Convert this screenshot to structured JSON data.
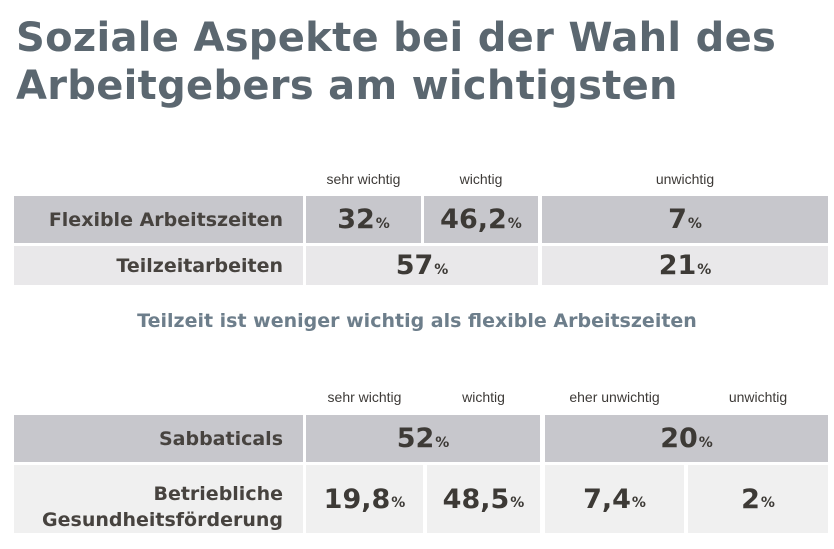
{
  "title_line1": "Soziale Aspekte bei der Wahl des",
  "title_line2": "Arbeitgebers am wichtigsten",
  "subtitle": "Teilzeit ist weniger wichtig als flexible Arbeitszeiten",
  "colors": {
    "title": "#5b6770",
    "row_dark": "#c7c7cc",
    "row_light": "#e9e8ea",
    "value_text": "#3d3a36",
    "subtitle": "#6d7e8b"
  },
  "chart_data": [
    {
      "type": "table",
      "columns": [
        "sehr wichtig",
        "wichtig",
        "unwichtig"
      ],
      "rows": [
        {
          "label": "Flexible Arbeitszeiten",
          "cells": [
            {
              "value": "32",
              "unit": "%"
            },
            {
              "value": "46,2",
              "unit": "%"
            },
            {
              "value": "7",
              "unit": "%"
            }
          ]
        },
        {
          "label": "Teilzeitarbeiten",
          "cells": [
            {
              "value": "57",
              "unit": "%",
              "spans": [
                "sehr wichtig",
                "wichtig"
              ]
            },
            {
              "value": "21",
              "unit": "%"
            }
          ]
        }
      ]
    },
    {
      "type": "table",
      "columns": [
        "sehr wichtig",
        "wichtig",
        "eher unwichtig",
        "unwichtig"
      ],
      "rows": [
        {
          "label": "Sabbaticals",
          "cells": [
            {
              "value": "52",
              "unit": "%",
              "spans": [
                "sehr wichtig",
                "wichtig"
              ]
            },
            {
              "value": "20",
              "unit": "%",
              "spans": [
                "eher unwichtig",
                "unwichtig"
              ]
            }
          ]
        },
        {
          "label_line1": "Betriebliche",
          "label_line2": "Gesundheitsförderung",
          "cells": [
            {
              "value": "19,8",
              "unit": "%"
            },
            {
              "value": "48,5",
              "unit": "%"
            },
            {
              "value": "7,4",
              "unit": "%"
            },
            {
              "value": "2",
              "unit": "%"
            }
          ]
        }
      ]
    }
  ]
}
